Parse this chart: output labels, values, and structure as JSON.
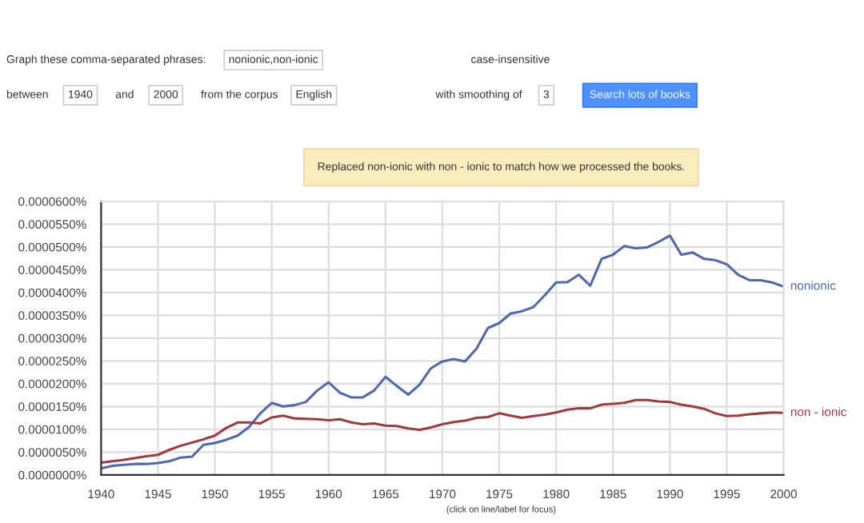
{
  "chart_data": {
    "type": "line",
    "x": [
      1940,
      1941,
      1942,
      1943,
      1944,
      1945,
      1946,
      1947,
      1948,
      1949,
      1950,
      1951,
      1952,
      1953,
      1954,
      1955,
      1956,
      1957,
      1958,
      1959,
      1960,
      1961,
      1962,
      1963,
      1964,
      1965,
      1966,
      1967,
      1968,
      1969,
      1970,
      1971,
      1972,
      1973,
      1974,
      1975,
      1976,
      1977,
      1978,
      1979,
      1980,
      1981,
      1982,
      1983,
      1984,
      1985,
      1986,
      1987,
      1988,
      1989,
      1990,
      1991,
      1992,
      1993,
      1994,
      1995,
      1996,
      1997,
      1998,
      1999,
      2000
    ],
    "series": [
      {
        "name": "nonionic",
        "color": "#5068b0",
        "values": [
          1.4e-06,
          2e-06,
          2.2e-06,
          2.4e-06,
          2.4e-06,
          2.6e-06,
          3e-06,
          3.8e-06,
          4e-06,
          6.6e-06,
          7e-06,
          7.7e-06,
          8.6e-06,
          1.05e-05,
          1.35e-05,
          1.58e-05,
          1.5e-05,
          1.53e-05,
          1.6e-05,
          1.85e-05,
          2.03e-05,
          1.8e-05,
          1.7e-05,
          1.7e-05,
          1.85e-05,
          2.15e-05,
          1.95e-05,
          1.76e-05,
          1.98e-05,
          2.34e-05,
          2.49e-05,
          2.54e-05,
          2.49e-05,
          2.77e-05,
          3.22e-05,
          3.33e-05,
          3.54e-05,
          3.59e-05,
          3.68e-05,
          3.94e-05,
          4.22e-05,
          4.23e-05,
          4.39e-05,
          4.15e-05,
          4.74e-05,
          4.83e-05,
          5.02e-05,
          4.97e-05,
          4.99e-05,
          5.11e-05,
          5.25e-05,
          4.83e-05,
          4.88e-05,
          4.74e-05,
          4.71e-05,
          4.62e-05,
          4.39e-05,
          4.27e-05,
          4.27e-05,
          4.22e-05,
          4.13e-05
        ]
      },
      {
        "name": "non - ionic",
        "color": "#a03a40",
        "values": [
          2.7e-06,
          3e-06,
          3.3e-06,
          3.7e-06,
          4.1e-06,
          4.4e-06,
          5.5e-06,
          6.4e-06,
          7.1e-06,
          7.8e-06,
          8.6e-06,
          1.03e-05,
          1.15e-05,
          1.15e-05,
          1.13e-05,
          1.26e-05,
          1.3e-05,
          1.24e-05,
          1.23e-05,
          1.22e-05,
          1.2e-05,
          1.22e-05,
          1.15e-05,
          1.11e-05,
          1.13e-05,
          1.08e-05,
          1.07e-05,
          1.02e-05,
          9.9e-06,
          1.04e-05,
          1.11e-05,
          1.16e-05,
          1.19e-05,
          1.25e-05,
          1.27e-05,
          1.35e-05,
          1.3e-05,
          1.25e-05,
          1.29e-05,
          1.32e-05,
          1.37e-05,
          1.43e-05,
          1.46e-05,
          1.46e-05,
          1.54e-05,
          1.56e-05,
          1.58e-05,
          1.64e-05,
          1.64e-05,
          1.61e-05,
          1.6e-05,
          1.54e-05,
          1.5e-05,
          1.45e-05,
          1.35e-05,
          1.29e-05,
          1.3e-05,
          1.33e-05,
          1.35e-05,
          1.37e-05,
          1.36e-05
        ]
      }
    ],
    "xlim": [
      1940,
      2000
    ],
    "xticks": [
      1940,
      1945,
      1950,
      1955,
      1960,
      1965,
      1970,
      1975,
      1980,
      1985,
      1990,
      1995,
      2000
    ],
    "ylim": [
      0,
      6e-05
    ],
    "yticks": [
      {
        "value": 0,
        "label": "0.0000000%"
      },
      {
        "value": 5e-06,
        "label": "0.0000050%"
      },
      {
        "value": 1e-05,
        "label": "0.0000100%"
      },
      {
        "value": 1.5e-05,
        "label": "0.0000150%"
      },
      {
        "value": 2e-05,
        "label": "0.0000200%"
      },
      {
        "value": 2.5e-05,
        "label": "0.0000250%"
      },
      {
        "value": 3e-05,
        "label": "0.0000300%"
      },
      {
        "value": 3.5e-05,
        "label": "0.0000350%"
      },
      {
        "value": 4e-05,
        "label": "0.0000400%"
      },
      {
        "value": 4.5e-05,
        "label": "0.0000450%"
      },
      {
        "value": 5e-05,
        "label": "0.0000500%"
      },
      {
        "value": 5.5e-05,
        "label": "0.0000550%"
      },
      {
        "value": 6e-05,
        "label": "0.0000600%"
      }
    ],
    "grid": true,
    "legend": false,
    "marker": "none",
    "line_style": "solid",
    "annotations": [
      "Graph these comma-separated phrases:",
      "nonionic,non-ionic",
      "case-insensitive",
      "between",
      "1940",
      "and",
      "2000",
      "from the corpus",
      "English",
      "with smoothing of",
      "3",
      "Search lots of books",
      "Replaced non-ionic with non - ionic to match how we processed the books.",
      "(click on line/label for focus)"
    ]
  }
}
